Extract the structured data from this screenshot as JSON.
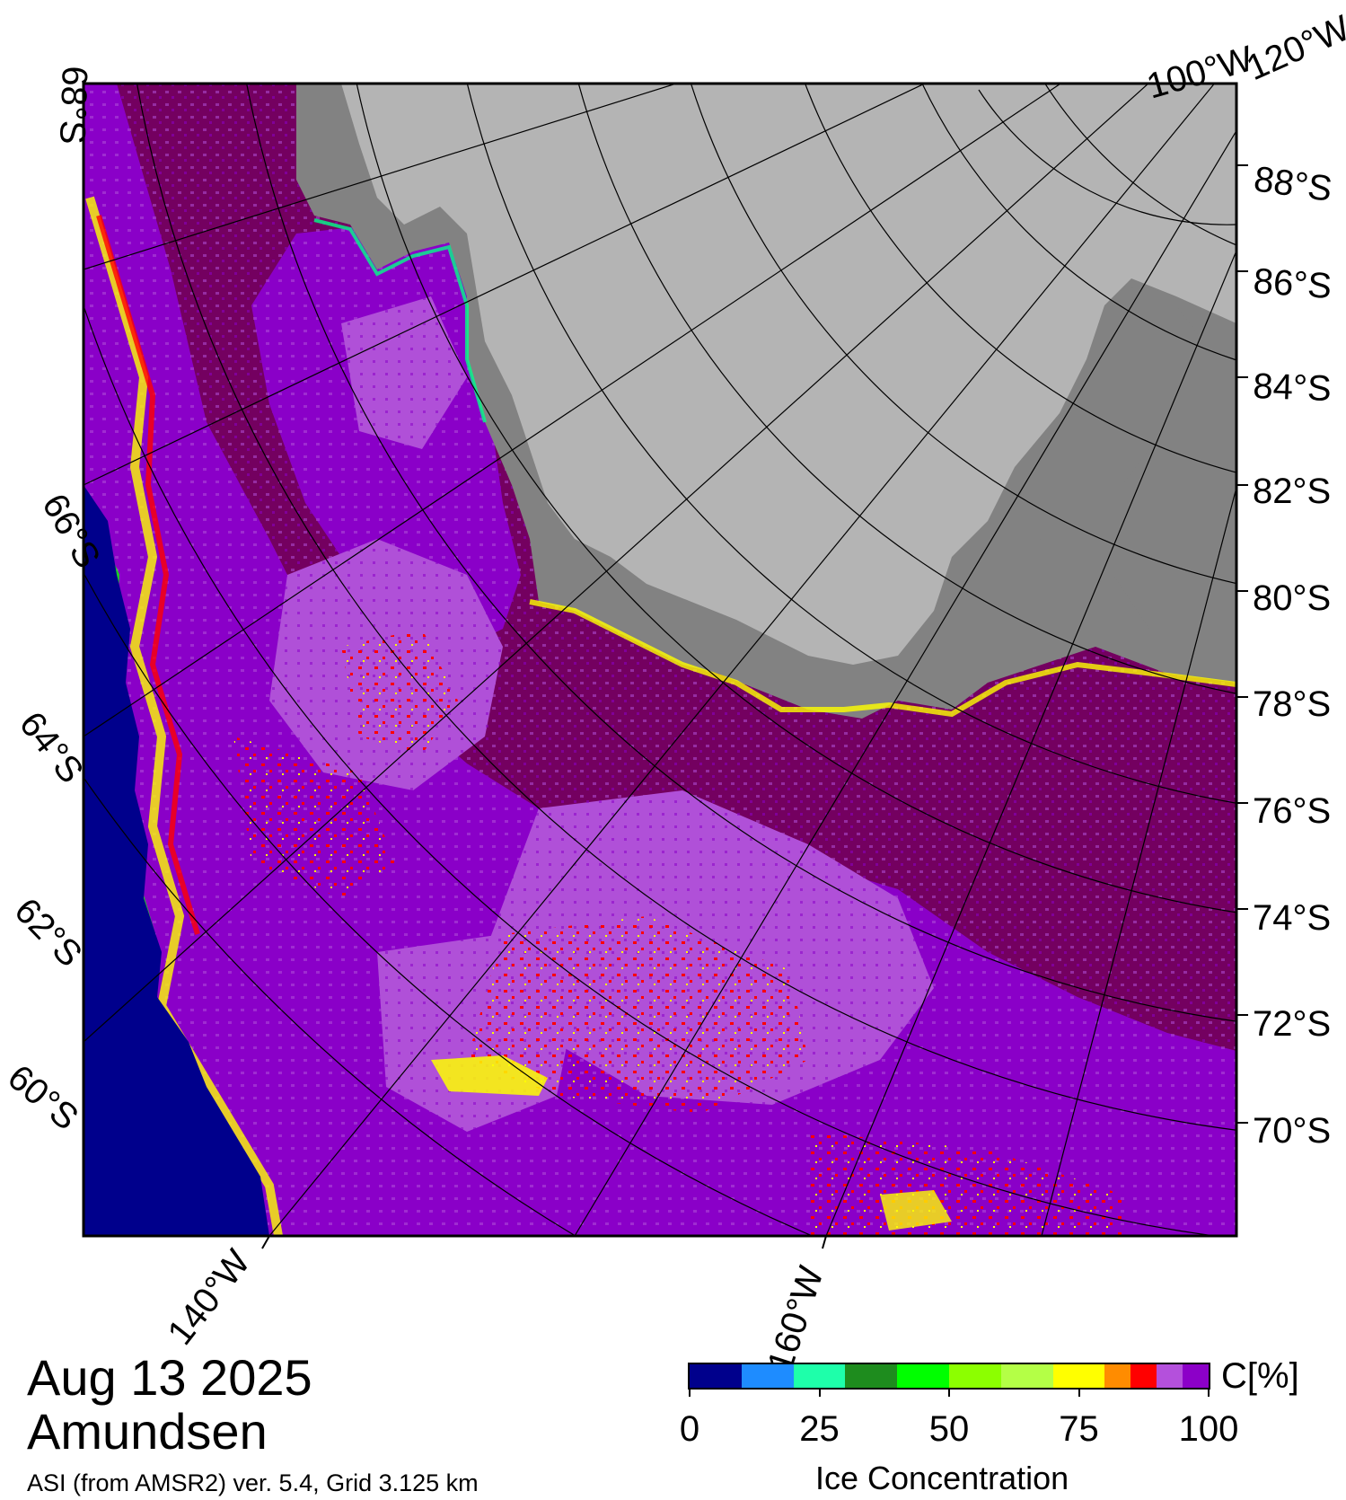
{
  "map": {
    "lat_labels": [
      "88°S",
      "86°S",
      "84°S",
      "82°S",
      "80°S",
      "78°S",
      "76°S",
      "74°S",
      "72°S",
      "70°S"
    ],
    "left_lat_labels": [
      "68°S",
      "66°S",
      "64°S",
      "62°S",
      "60°S"
    ],
    "lon_labels": [
      "140°W",
      "160°W",
      "100°W",
      "120°W"
    ],
    "colors": {
      "open_water": "#00008c",
      "ice_100": "#740060",
      "ice_95": "#8a00c8",
      "ice_90": "#b050d8",
      "ice_85": "#ff0000",
      "ice_75": "#ffff00",
      "land": "#b4b4b4",
      "ice_shelf": "#828282"
    }
  },
  "title": {
    "date": "Aug 13 2025",
    "region": "Amundsen",
    "info": "ASI (from AMSR2) ver. 5.4,  Grid 3.125 km"
  },
  "colorbar": {
    "unit": "C[%]",
    "title": "Ice Concentration",
    "ticks": [
      "0",
      "25",
      "50",
      "75",
      "100"
    ],
    "colors": [
      "#00008c",
      "#1e8cff",
      "#1effaa",
      "#1e8c1e",
      "#00ff00",
      "#8cff00",
      "#b4ff46",
      "#ffff00",
      "#ff8c00",
      "#ff0000",
      "#b450dc",
      "#8c00c8"
    ]
  }
}
